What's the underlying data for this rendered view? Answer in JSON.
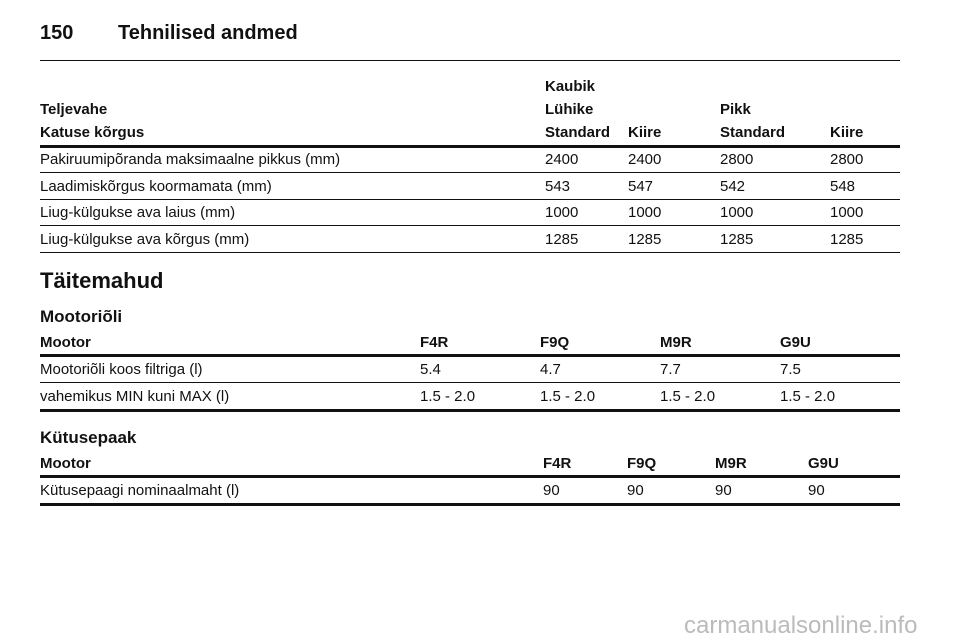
{
  "header": {
    "page_number": "150",
    "title": "Tehnilised andmed"
  },
  "table1": {
    "header_rows": [
      [
        "",
        "Kaubik",
        "",
        "",
        ""
      ],
      [
        "Teljevahe",
        "Lühike",
        "",
        "Pikk",
        ""
      ],
      [
        "Katuse kõrgus",
        "Standard",
        "Kiire",
        "Standard",
        "Kiire"
      ]
    ],
    "rows": [
      [
        "Pakiruumipõranda maksimaalne pikkus (mm)",
        "2400",
        "2400",
        "2800",
        "2800"
      ],
      [
        "Laadimiskõrgus koormamata (mm)",
        "543",
        "547",
        "542",
        "548"
      ],
      [
        "Liug-külgukse ava laius (mm)",
        "1000",
        "1000",
        "1000",
        "1000"
      ],
      [
        "Liug-külgukse ava kõrgus (mm)",
        "1285",
        "1285",
        "1285",
        "1285"
      ]
    ]
  },
  "section_title": "Täitemahud",
  "table2": {
    "title": "Mootoriõli",
    "header": [
      "Mootor",
      "F4R",
      "F9Q",
      "M9R",
      "G9U"
    ],
    "rows": [
      [
        "Mootoriõli koos filtriga (l)",
        "5.4",
        "4.7",
        "7.7",
        "7.5"
      ],
      [
        "vahemikus MIN kuni MAX (l)",
        "1.5 - 2.0",
        "1.5 - 2.0",
        "1.5 - 2.0",
        "1.5 - 2.0"
      ]
    ]
  },
  "table3": {
    "title": "Kütusepaak",
    "header": [
      "Mootor",
      "F4R",
      "F9Q",
      "M9R",
      "G9U"
    ],
    "rows": [
      [
        "Kütusepaagi nominaalmaht (l)",
        "90",
        "90",
        "90",
        "90"
      ]
    ]
  },
  "watermark": "carmanualsonline.info"
}
